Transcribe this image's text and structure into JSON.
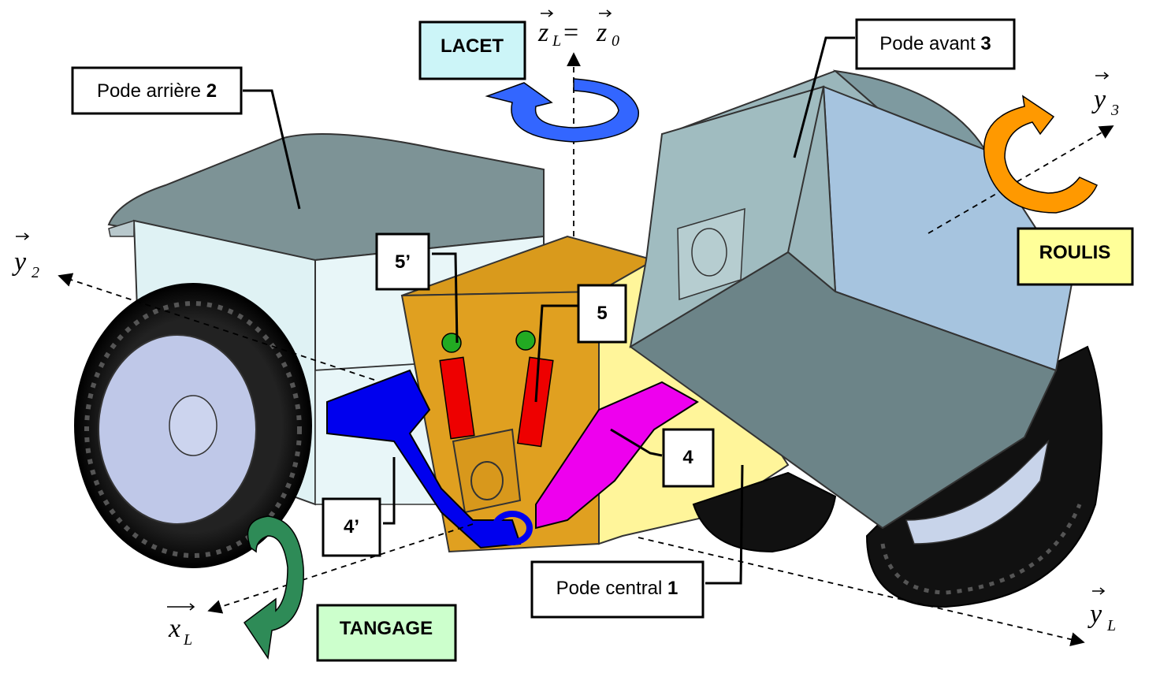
{
  "labels": {
    "pode_arriere": {
      "text": "Pode arrière ",
      "num": "2"
    },
    "pode_avant": {
      "text": "Pode avant ",
      "num": "3"
    },
    "pode_central": {
      "text": "Pode central ",
      "num": "1"
    },
    "part_5prime": "5’",
    "part_5": "5",
    "part_4": "4",
    "part_4prime": "4’"
  },
  "rotations": {
    "lacet": "LACET",
    "roulis": "ROULIS",
    "tangage": "TANGAGE"
  },
  "axes": {
    "zL": {
      "main": "z",
      "sub": "L",
      "eq": " = ",
      "main2": "z",
      "sub2": "0"
    },
    "y2": {
      "main": "y",
      "sub": "2"
    },
    "y3": {
      "main": "y",
      "sub": "3"
    },
    "xL": {
      "main": "x",
      "sub": "L"
    },
    "yL": {
      "main": "y",
      "sub": "L"
    }
  },
  "colors": {
    "lacet_box": "#ccf5f8",
    "roulis_box": "#ffff99",
    "tangage_box": "#ccffcc",
    "lacet_arrow": "#3366ff",
    "roulis_arrow": "#ff9900",
    "tangage_arrow": "#2e8b57",
    "central_body": "#e0a020",
    "central_side": "#fff59a",
    "rear_body": "#dff2f4",
    "front_body": "#a6c4df",
    "arm_blue": "#0000ee",
    "arm_magenta": "#ee00ee",
    "jack_red": "#ee0000"
  }
}
